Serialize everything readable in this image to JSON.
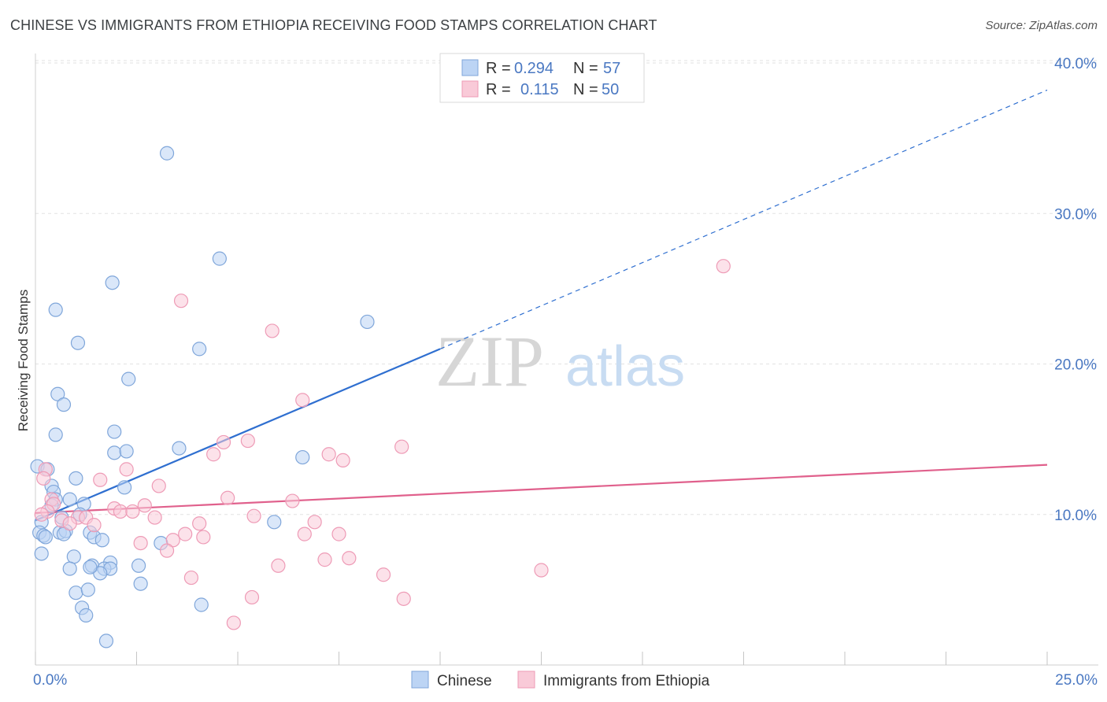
{
  "title": "CHINESE VS IMMIGRANTS FROM ETHIOPIA RECEIVING FOOD STAMPS CORRELATION CHART",
  "source": "Source: ZipAtlas.com",
  "watermark": {
    "zip": "ZIP",
    "atlas": "atlas"
  },
  "colors": {
    "blue": "#4a78c2",
    "blue_fill": "#bcd4f4",
    "blue_stroke": "#7fa6da",
    "blue_line": "#2f6fd0",
    "pink_fill": "#f9cad8",
    "pink_stroke": "#ee9bb6",
    "pink_line": "#e0608c"
  },
  "legend": {
    "chinese": {
      "r_label": "R =",
      "r_value": "0.294",
      "n_label": "N =",
      "n_value": "57"
    },
    "ethiopia": {
      "r_label": "R =",
      "r_value": "0.115",
      "n_label": "N =",
      "n_value": "50"
    }
  },
  "chart_data": {
    "type": "scatter",
    "title": "CHINESE VS IMMIGRANTS FROM ETHIOPIA RECEIVING FOOD STAMPS CORRELATION CHART",
    "xlabel": "",
    "ylabel": "Receiving Food Stamps",
    "xlim": [
      0,
      25
    ],
    "ylim": [
      0,
      40
    ],
    "x_tick_labels": [
      {
        "value": 0,
        "label": "0.0%"
      },
      {
        "value": 25,
        "label": "25.0%"
      }
    ],
    "y_tick_labels": [
      {
        "value": 10,
        "label": "10.0%"
      },
      {
        "value": 20,
        "label": "20.0%"
      },
      {
        "value": 30,
        "label": "30.0%"
      },
      {
        "value": 40,
        "label": "40.0%"
      }
    ],
    "bottom_legend": [
      "Chinese",
      "Immigrants from Ethiopia"
    ],
    "series": [
      {
        "name": "Chinese",
        "color": "blue",
        "points": [
          [
            3.25,
            34.0
          ],
          [
            4.55,
            27.0
          ],
          [
            1.9,
            25.4
          ],
          [
            0.5,
            23.6
          ],
          [
            8.2,
            22.8
          ],
          [
            1.05,
            21.4
          ],
          [
            4.05,
            21.0
          ],
          [
            2.3,
            19.0
          ],
          [
            0.55,
            18.0
          ],
          [
            0.7,
            17.3
          ],
          [
            0.5,
            15.3
          ],
          [
            1.95,
            15.5
          ],
          [
            3.55,
            14.4
          ],
          [
            1.95,
            14.1
          ],
          [
            2.25,
            14.2
          ],
          [
            6.6,
            13.8
          ],
          [
            0.05,
            13.2
          ],
          [
            0.3,
            13.0
          ],
          [
            1.0,
            12.4
          ],
          [
            2.2,
            11.8
          ],
          [
            0.4,
            11.9
          ],
          [
            0.45,
            11.5
          ],
          [
            0.5,
            11.0
          ],
          [
            0.85,
            11.0
          ],
          [
            0.4,
            10.6
          ],
          [
            1.2,
            10.7
          ],
          [
            1.1,
            10.0
          ],
          [
            0.65,
            9.8
          ],
          [
            0.15,
            9.5
          ],
          [
            5.9,
            9.5
          ],
          [
            0.1,
            8.8
          ],
          [
            0.2,
            8.6
          ],
          [
            0.25,
            8.5
          ],
          [
            0.6,
            8.8
          ],
          [
            0.75,
            8.9
          ],
          [
            1.35,
            8.8
          ],
          [
            1.45,
            8.5
          ],
          [
            1.65,
            8.3
          ],
          [
            0.95,
            7.2
          ],
          [
            0.15,
            7.4
          ],
          [
            3.1,
            8.1
          ],
          [
            0.85,
            6.4
          ],
          [
            1.85,
            6.8
          ],
          [
            1.4,
            6.6
          ],
          [
            1.7,
            6.4
          ],
          [
            2.55,
            6.6
          ],
          [
            1.85,
            6.4
          ],
          [
            1.6,
            6.1
          ],
          [
            2.6,
            5.4
          ],
          [
            1.0,
            4.8
          ],
          [
            1.3,
            5.0
          ],
          [
            1.15,
            3.8
          ],
          [
            1.25,
            3.3
          ],
          [
            4.1,
            4.0
          ],
          [
            1.75,
            1.6
          ],
          [
            1.35,
            6.5
          ],
          [
            0.7,
            8.7
          ]
        ],
        "trend": {
          "x": [
            0,
            10
          ],
          "y": [
            9.6,
            21.0
          ],
          "dashed_extension": {
            "x": [
              10,
              25
            ],
            "y": [
              21.0,
              38.2
            ]
          }
        }
      },
      {
        "name": "Immigrants from Ethiopia",
        "color": "pink",
        "points": [
          [
            17.0,
            26.5
          ],
          [
            3.6,
            24.2
          ],
          [
            5.85,
            22.2
          ],
          [
            6.6,
            17.6
          ],
          [
            4.65,
            14.8
          ],
          [
            5.25,
            14.9
          ],
          [
            9.05,
            14.5
          ],
          [
            7.25,
            14.0
          ],
          [
            7.6,
            13.6
          ],
          [
            4.4,
            14.0
          ],
          [
            0.25,
            13.0
          ],
          [
            0.2,
            12.4
          ],
          [
            1.6,
            12.3
          ],
          [
            2.25,
            13.0
          ],
          [
            3.05,
            11.9
          ],
          [
            0.4,
            11.0
          ],
          [
            0.45,
            10.7
          ],
          [
            4.75,
            11.1
          ],
          [
            6.35,
            10.9
          ],
          [
            2.7,
            10.6
          ],
          [
            1.95,
            10.4
          ],
          [
            2.1,
            10.2
          ],
          [
            2.4,
            10.2
          ],
          [
            0.3,
            10.2
          ],
          [
            0.15,
            10.0
          ],
          [
            1.05,
            9.8
          ],
          [
            1.25,
            9.8
          ],
          [
            2.95,
            9.8
          ],
          [
            5.4,
            9.9
          ],
          [
            0.65,
            9.6
          ],
          [
            0.85,
            9.4
          ],
          [
            1.45,
            9.3
          ],
          [
            4.05,
            9.4
          ],
          [
            6.9,
            9.5
          ],
          [
            3.7,
            8.7
          ],
          [
            4.15,
            8.5
          ],
          [
            6.65,
            8.7
          ],
          [
            7.5,
            8.7
          ],
          [
            2.6,
            8.1
          ],
          [
            3.4,
            8.3
          ],
          [
            3.25,
            7.6
          ],
          [
            7.75,
            7.1
          ],
          [
            7.15,
            7.0
          ],
          [
            6.0,
            6.6
          ],
          [
            3.85,
            5.8
          ],
          [
            8.6,
            6.0
          ],
          [
            12.5,
            6.3
          ],
          [
            5.35,
            4.5
          ],
          [
            9.1,
            4.4
          ],
          [
            4.9,
            2.8
          ]
        ],
        "trend": {
          "x": [
            0,
            25
          ],
          "y": [
            10.1,
            13.3
          ]
        }
      }
    ]
  }
}
